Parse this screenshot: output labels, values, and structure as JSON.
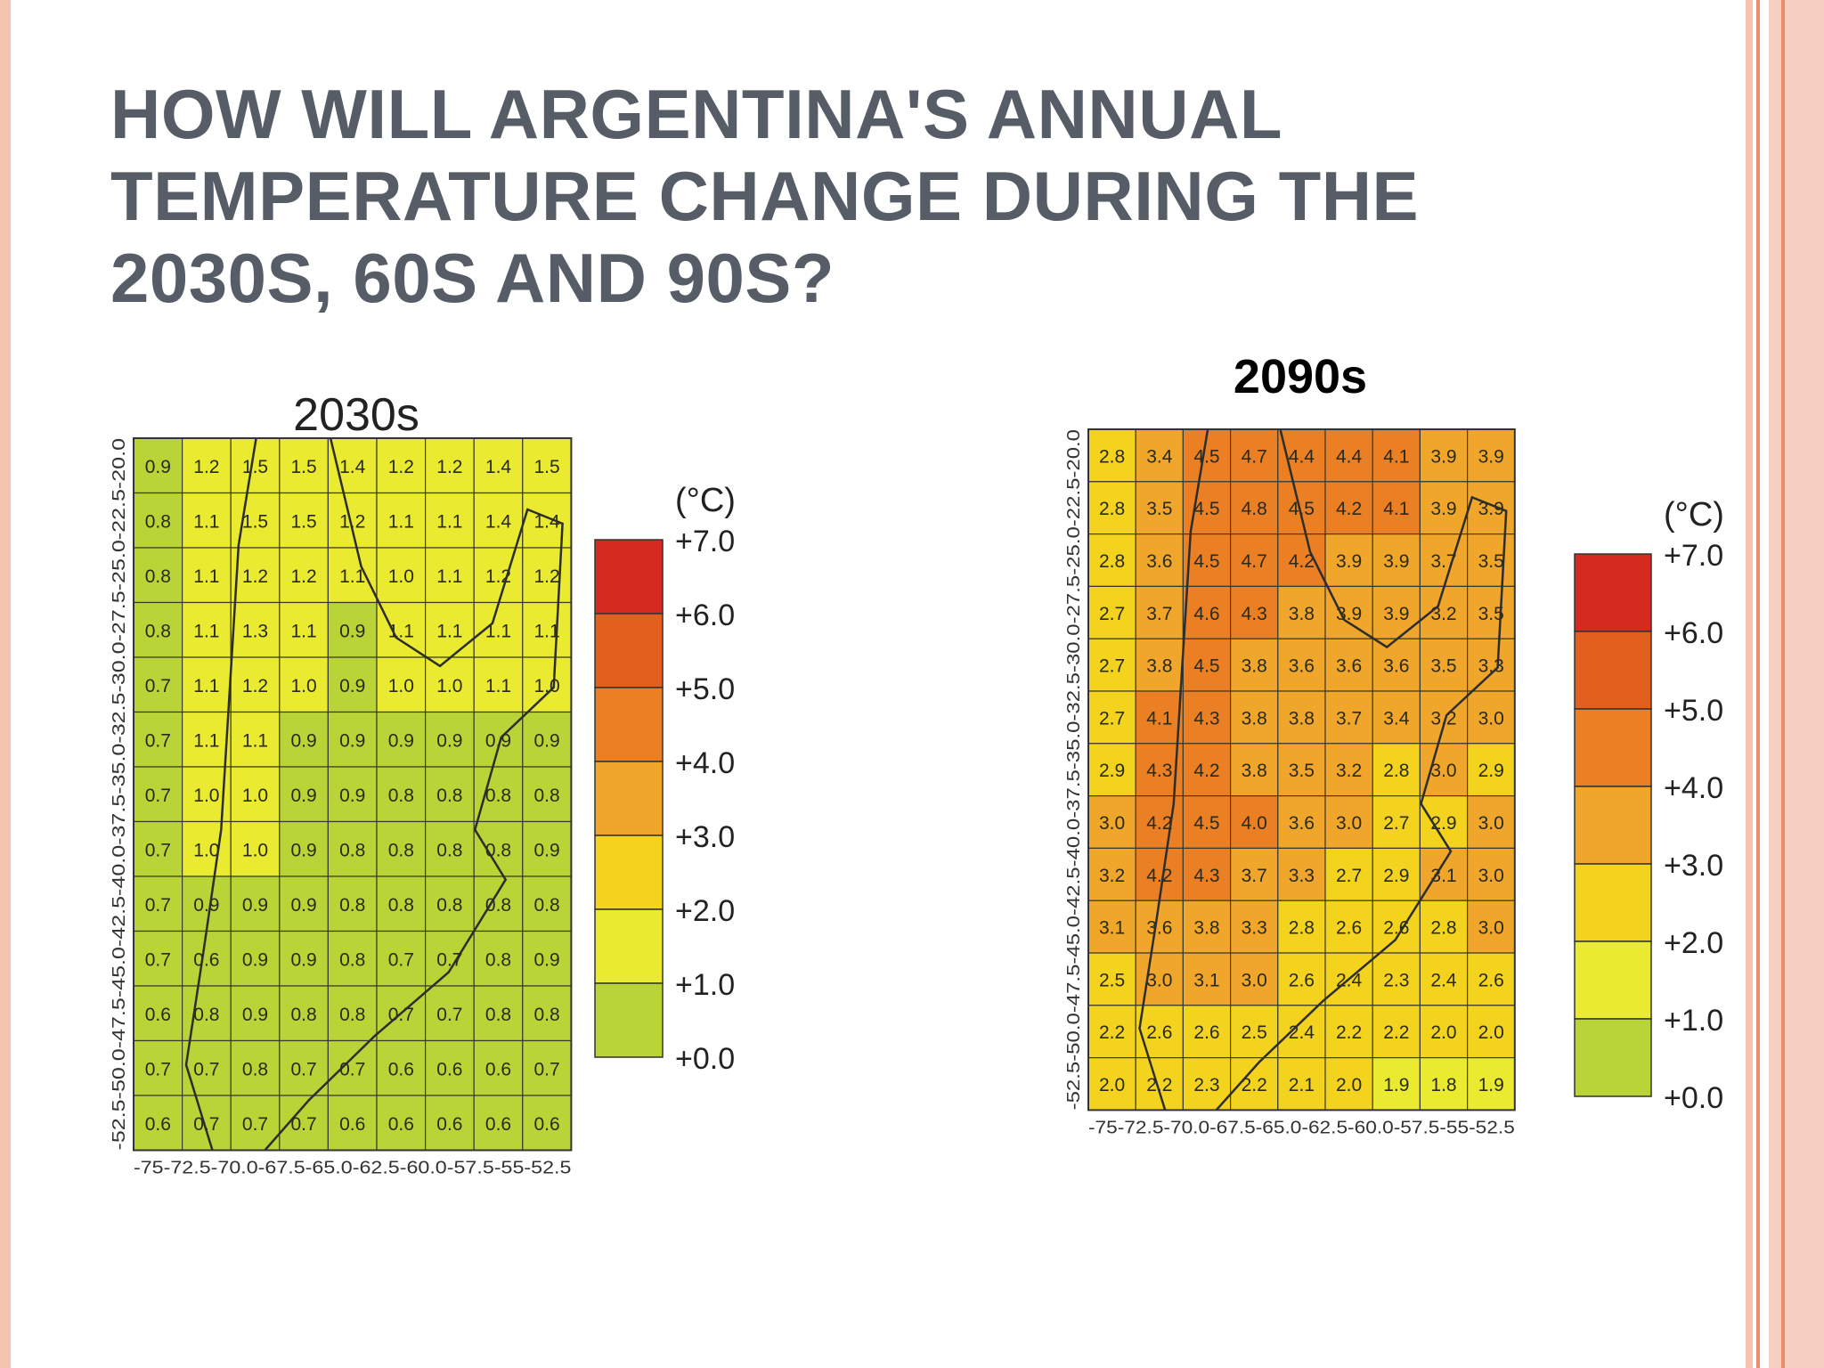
{
  "slide": {
    "title_lines": [
      "HOW WILL ARGENTINA'S ANNUAL",
      "TEMPERATURE CHANGE DURING THE",
      "2030S, 60S AND 90S?"
    ]
  },
  "colors": {
    "border_outer": "#f5c3b0",
    "border_inner": "#f08a6c",
    "title_text": "#575d66"
  },
  "legend": {
    "unit": "(°C)",
    "labels": [
      "+7.0",
      "+6.0",
      "+5.0",
      "+4.0",
      "+3.0",
      "+2.0",
      "+1.0",
      "+0.0"
    ],
    "bins": [
      {
        "min": 6,
        "max": 7,
        "color": "#d42a1f"
      },
      {
        "min": 5,
        "max": 6,
        "color": "#e35f1e"
      },
      {
        "min": 4,
        "max": 5,
        "color": "#ea7f24"
      },
      {
        "min": 3,
        "max": 4,
        "color": "#f0a52b"
      },
      {
        "min": 2,
        "max": 3,
        "color": "#f3d31d"
      },
      {
        "min": 1,
        "max": 2,
        "color": "#eaea30"
      },
      {
        "min": 0,
        "max": 1,
        "color": "#b9d436"
      }
    ]
  },
  "maps": [
    {
      "title": "2030s",
      "title_bold": false,
      "lat_labels": [
        "-52.5",
        "50.0",
        "-47.5",
        "-45.0",
        "-42.5",
        "-40.0",
        "-37.5",
        "-35.0",
        "-32.5",
        "-30.0",
        "-27.5",
        "-25.0",
        "-22.5",
        "20.0"
      ],
      "lon_labels": [
        "-75",
        "72.5",
        "-70.0",
        "-67.5",
        "-65.0",
        "-62.5",
        "-60.0",
        "-57.5",
        "-55",
        "52.5"
      ],
      "values": [
        [
          0.9,
          1.2,
          1.5,
          1.5,
          1.4,
          1.2,
          1.2,
          1.4,
          1.5
        ],
        [
          0.8,
          1.1,
          1.5,
          1.5,
          1.2,
          1.1,
          1.1,
          1.4,
          1.4
        ],
        [
          0.8,
          1.1,
          1.2,
          1.2,
          1.1,
          1.0,
          1.1,
          1.2,
          1.2
        ],
        [
          0.8,
          1.1,
          1.3,
          1.1,
          0.9,
          1.1,
          1.1,
          1.1,
          1.1
        ],
        [
          0.7,
          1.1,
          1.2,
          1.0,
          0.9,
          1.0,
          1.0,
          1.1,
          1.0
        ],
        [
          0.7,
          1.1,
          1.1,
          0.9,
          0.9,
          0.9,
          0.9,
          0.9,
          0.9
        ],
        [
          0.7,
          1.0,
          1.0,
          0.9,
          0.9,
          0.8,
          0.8,
          0.8,
          0.8
        ],
        [
          0.7,
          1.0,
          1.0,
          0.9,
          0.8,
          0.8,
          0.8,
          0.8,
          0.9
        ],
        [
          0.7,
          0.9,
          0.9,
          0.9,
          0.8,
          0.8,
          0.8,
          0.8,
          0.8
        ],
        [
          0.7,
          0.6,
          0.9,
          0.9,
          0.8,
          0.7,
          0.7,
          0.8,
          0.9
        ],
        [
          0.6,
          0.8,
          0.9,
          0.8,
          0.8,
          0.7,
          0.7,
          0.8,
          0.8
        ],
        [
          0.7,
          0.7,
          0.8,
          0.7,
          0.7,
          0.6,
          0.6,
          0.6,
          0.7
        ],
        [
          0.6,
          0.7,
          0.7,
          0.7,
          0.6,
          0.6,
          0.6,
          0.6,
          0.6
        ]
      ]
    },
    {
      "title": "2090s",
      "title_bold": true,
      "lat_labels": [
        "-52.5",
        "50.0",
        "-47.5",
        "-45.0",
        "-42.5",
        "-40.0",
        "-37.5",
        "-35.0",
        "-32.5",
        "-30.0",
        "-27.5",
        "-25.0",
        "-22.5",
        "20.0"
      ],
      "lon_labels": [
        "-75",
        "72.5",
        "-70.0",
        "-67.5",
        "-65.0",
        "-62.5",
        "-60.0",
        "-57.5",
        "-55",
        "52.5"
      ],
      "values": [
        [
          2.8,
          3.4,
          4.5,
          4.7,
          4.4,
          4.4,
          4.1,
          3.9,
          3.9
        ],
        [
          2.8,
          3.5,
          4.5,
          4.8,
          4.5,
          4.2,
          4.1,
          3.9,
          3.9
        ],
        [
          2.8,
          3.6,
          4.5,
          4.7,
          4.2,
          3.9,
          3.9,
          3.7,
          3.5
        ],
        [
          2.7,
          3.7,
          4.6,
          4.3,
          3.8,
          3.9,
          3.9,
          3.2,
          3.5
        ],
        [
          2.7,
          3.8,
          4.5,
          3.8,
          3.6,
          3.6,
          3.6,
          3.5,
          3.3
        ],
        [
          2.7,
          4.1,
          4.3,
          3.8,
          3.8,
          3.7,
          3.4,
          3.2,
          3.0
        ],
        [
          2.9,
          4.3,
          4.2,
          3.8,
          3.5,
          3.2,
          2.8,
          3.0,
          2.9
        ],
        [
          3.0,
          4.2,
          4.5,
          4.0,
          3.6,
          3.0,
          2.7,
          2.9,
          3.0
        ],
        [
          3.2,
          4.2,
          4.3,
          3.7,
          3.3,
          2.7,
          2.9,
          3.1,
          3.0
        ],
        [
          3.1,
          3.6,
          3.8,
          3.3,
          2.8,
          2.6,
          2.6,
          2.8,
          3.0
        ],
        [
          2.5,
          3.0,
          3.1,
          3.0,
          2.6,
          2.4,
          2.3,
          2.4,
          2.6
        ],
        [
          2.2,
          2.6,
          2.6,
          2.5,
          2.4,
          2.2,
          2.2,
          2.0,
          2.0
        ],
        [
          2.0,
          2.2,
          2.3,
          2.2,
          2.1,
          2.0,
          1.9,
          1.8,
          1.9
        ]
      ]
    }
  ]
}
